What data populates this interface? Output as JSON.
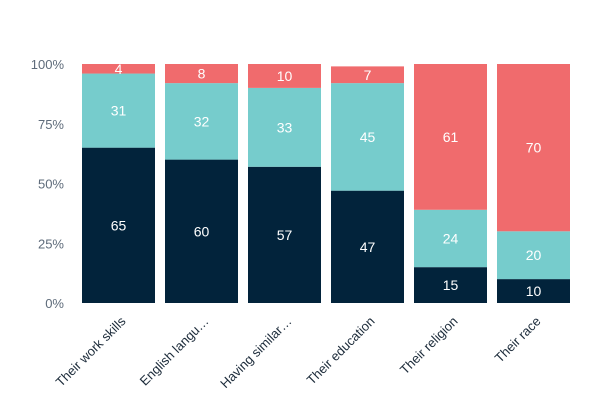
{
  "chart_data": {
    "type": "bar",
    "stacked": true,
    "categories": [
      "Their work skills",
      "English langu…",
      "Having similar…",
      "Their education",
      "Their religion",
      "Their race"
    ],
    "series": [
      {
        "values": [
          65,
          60,
          57,
          47,
          15,
          10
        ],
        "color": "#02233b"
      },
      {
        "values": [
          31,
          32,
          33,
          45,
          24,
          20
        ],
        "color": "#76cccc"
      },
      {
        "values": [
          4,
          8,
          10,
          7,
          61,
          70
        ],
        "color": "#f06b6d"
      }
    ],
    "yticks": [
      "0%",
      "25%",
      "50%",
      "75%",
      "100%"
    ],
    "ylim": [
      0,
      100
    ],
    "grid": false,
    "legend": "none"
  }
}
